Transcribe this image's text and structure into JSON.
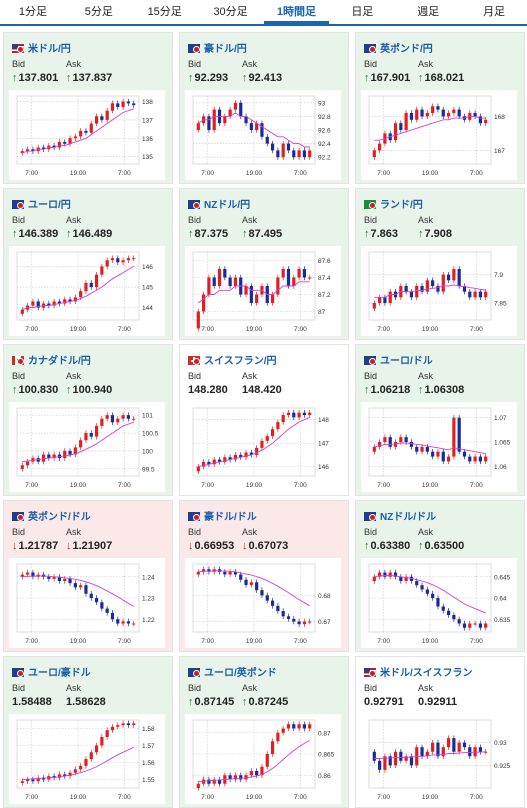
{
  "tabs": [
    {
      "label": "1分足",
      "active": false
    },
    {
      "label": "5分足",
      "active": false
    },
    {
      "label": "15分足",
      "active": false
    },
    {
      "label": "30分足",
      "active": false
    },
    {
      "label": "1時間足",
      "active": true
    },
    {
      "label": "日足",
      "active": false
    },
    {
      "label": "週足",
      "active": false
    },
    {
      "label": "月足",
      "active": false
    }
  ],
  "labels": {
    "bid": "Bid",
    "ask": "Ask"
  },
  "colors": {
    "up_bg": "#e8f4ea",
    "down_bg": "#fbe9ea",
    "up_arrow": "#1e8c3a",
    "down_arrow": "#d0202a",
    "title": "#1a5ca8",
    "ma": "#d23fd2",
    "candle_up": "#e02020",
    "candle_down": "#1a2a9a"
  },
  "pairs": [
    {
      "name": "米ドル/円",
      "flag": "us-jp",
      "trend": "up",
      "bid": "137.801",
      "ask": "137.837",
      "bid_dir": "up",
      "ask_dir": "up",
      "chart_data": {
        "type": "candlestick",
        "x_ticks": [
          "7:00",
          "19:00",
          "7:00"
        ],
        "y_ticks": [
          "138",
          "137",
          "136",
          "135"
        ],
        "ylim": [
          134.6,
          138.3
        ],
        "close": [
          135.3,
          135.4,
          135.3,
          135.5,
          135.4,
          135.6,
          135.5,
          135.8,
          135.7,
          136.0,
          136.1,
          136.4,
          136.3,
          136.8,
          137.2,
          137.0,
          137.5,
          137.9,
          137.7,
          138.0,
          137.9,
          137.8
        ],
        "ma": [
          135.2,
          135.3,
          135.3,
          135.4,
          135.4,
          135.5,
          135.5,
          135.6,
          135.6,
          135.7,
          135.8,
          135.9,
          136.0,
          136.2,
          136.4,
          136.6,
          136.8,
          137.0,
          137.2,
          137.4,
          137.5,
          137.6
        ]
      }
    },
    {
      "name": "豪ドル/円",
      "flag": "au-jp",
      "trend": "up",
      "bid": "92.293",
      "ask": "92.413",
      "bid_dir": "up",
      "ask_dir": "up",
      "chart_data": {
        "type": "candlestick",
        "x_ticks": [
          "7:00",
          "19:00",
          "7:00"
        ],
        "y_ticks": [
          "93",
          "92.8",
          "92.6",
          "92.4",
          "92.2"
        ],
        "ylim": [
          92.1,
          93.1
        ],
        "close": [
          92.7,
          92.8,
          92.6,
          92.9,
          92.7,
          92.8,
          92.9,
          93.0,
          92.8,
          92.7,
          92.6,
          92.7,
          92.5,
          92.4,
          92.3,
          92.2,
          92.4,
          92.3,
          92.2,
          92.3,
          92.2,
          92.3
        ],
        "ma": [
          92.7,
          92.75,
          92.75,
          92.8,
          92.8,
          92.8,
          92.8,
          92.85,
          92.8,
          92.8,
          92.75,
          92.7,
          92.65,
          92.6,
          92.55,
          92.5,
          92.5,
          92.45,
          92.4,
          92.4,
          92.35,
          92.35
        ]
      }
    },
    {
      "name": "英ポンド/円",
      "flag": "gb-jp",
      "trend": "up",
      "bid": "167.901",
      "ask": "168.021",
      "bid_dir": "up",
      "ask_dir": "up",
      "chart_data": {
        "type": "candlestick",
        "x_ticks": [
          "7:00",
          "19:00",
          "7:00"
        ],
        "y_ticks": [
          "168",
          "167"
        ],
        "ylim": [
          166.6,
          168.6
        ],
        "close": [
          167.0,
          167.2,
          167.5,
          167.3,
          167.8,
          167.6,
          168.1,
          167.9,
          168.2,
          168.0,
          168.1,
          168.3,
          168.2,
          168.0,
          168.1,
          168.2,
          168.0,
          167.9,
          168.1,
          168.0,
          167.8,
          167.9
        ],
        "ma": [
          167.3,
          167.3,
          167.35,
          167.4,
          167.45,
          167.5,
          167.55,
          167.6,
          167.65,
          167.7,
          167.75,
          167.8,
          167.85,
          167.9,
          167.9,
          167.95,
          167.95,
          167.95,
          168.0,
          168.0,
          167.95,
          167.95
        ]
      }
    },
    {
      "name": "ユーロ/円",
      "flag": "eu-jp",
      "trend": "up",
      "bid": "146.389",
      "ask": "146.489",
      "bid_dir": "up",
      "ask_dir": "up",
      "chart_data": {
        "type": "candlestick",
        "x_ticks": [
          "7:00",
          "19:00",
          "7:00"
        ],
        "y_ticks": [
          "146",
          "145",
          "144"
        ],
        "ylim": [
          143.4,
          146.7
        ],
        "close": [
          143.9,
          144.1,
          144.3,
          144.0,
          144.2,
          144.1,
          144.3,
          144.2,
          144.4,
          144.3,
          144.5,
          144.8,
          145.2,
          145.0,
          145.6,
          146.0,
          146.3,
          146.4,
          146.2,
          146.3,
          146.4,
          146.4
        ],
        "ma": [
          143.9,
          144.0,
          144.0,
          144.05,
          144.1,
          144.1,
          144.15,
          144.2,
          144.25,
          144.3,
          144.35,
          144.45,
          144.55,
          144.7,
          144.85,
          145.0,
          145.2,
          145.4,
          145.55,
          145.7,
          145.85,
          146.0
        ]
      }
    },
    {
      "name": "NZドル/円",
      "flag": "nz-jp",
      "trend": "up",
      "bid": "87.375",
      "ask": "87.495",
      "bid_dir": "up",
      "ask_dir": "up",
      "chart_data": {
        "type": "candlestick",
        "x_ticks": [
          "7:00",
          "19:00",
          "7:00"
        ],
        "y_ticks": [
          "87.6",
          "87.4",
          "87.2",
          "87"
        ],
        "ylim": [
          86.9,
          87.7
        ],
        "close": [
          87.0,
          87.2,
          87.4,
          87.3,
          87.5,
          87.4,
          87.3,
          87.4,
          87.2,
          87.3,
          87.1,
          87.2,
          87.3,
          87.1,
          87.2,
          87.4,
          87.5,
          87.3,
          87.4,
          87.5,
          87.4,
          87.4
        ],
        "ma": [
          87.1,
          87.15,
          87.2,
          87.2,
          87.25,
          87.25,
          87.25,
          87.3,
          87.3,
          87.3,
          87.25,
          87.25,
          87.25,
          87.2,
          87.2,
          87.25,
          87.3,
          87.3,
          87.3,
          87.35,
          87.35,
          87.35
        ]
      }
    },
    {
      "name": "ランド/円",
      "flag": "za-jp",
      "trend": "up",
      "bid": "7.863",
      "ask": "7.908",
      "bid_dir": "up",
      "ask_dir": "up",
      "chart_data": {
        "type": "candlestick",
        "x_ticks": [
          "7:00",
          "19:00",
          "7:00"
        ],
        "y_ticks": [
          "7.9",
          "7.85"
        ],
        "ylim": [
          7.82,
          7.94
        ],
        "close": [
          7.85,
          7.86,
          7.85,
          7.87,
          7.86,
          7.88,
          7.87,
          7.86,
          7.88,
          7.87,
          7.89,
          7.88,
          7.87,
          7.9,
          7.89,
          7.91,
          7.88,
          7.87,
          7.86,
          7.87,
          7.86,
          7.87
        ],
        "ma": [
          7.86,
          7.86,
          7.86,
          7.865,
          7.865,
          7.87,
          7.87,
          7.87,
          7.872,
          7.872,
          7.875,
          7.876,
          7.877,
          7.88,
          7.88,
          7.882,
          7.88,
          7.879,
          7.877,
          7.876,
          7.874,
          7.873
        ]
      }
    },
    {
      "name": "カナダドル/円",
      "flag": "ca-jp",
      "trend": "up",
      "bid": "100.830",
      "ask": "100.940",
      "bid_dir": "up",
      "ask_dir": "up",
      "chart_data": {
        "type": "candlestick",
        "x_ticks": [
          "7:00",
          "19:00",
          "7:00"
        ],
        "y_ticks": [
          "101",
          "100.5",
          "100",
          "99.5"
        ],
        "ylim": [
          99.3,
          101.2
        ],
        "close": [
          99.6,
          99.7,
          99.8,
          99.7,
          99.9,
          99.8,
          99.9,
          99.8,
          100.0,
          99.9,
          100.1,
          100.3,
          100.5,
          100.4,
          100.7,
          100.9,
          101.0,
          100.8,
          100.9,
          101.0,
          100.9,
          100.9
        ],
        "ma": [
          99.7,
          99.72,
          99.74,
          99.76,
          99.78,
          99.8,
          99.82,
          99.84,
          99.86,
          99.88,
          99.92,
          99.98,
          100.05,
          100.12,
          100.2,
          100.3,
          100.4,
          100.5,
          100.6,
          100.7,
          100.75,
          100.8
        ]
      }
    },
    {
      "name": "スイスフラン/円",
      "flag": "ch-jp",
      "trend": "flat",
      "bid": "148.280",
      "ask": "148.420",
      "bid_dir": "none",
      "ask_dir": "none",
      "chart_data": {
        "type": "candlestick",
        "x_ticks": [
          "7:00",
          "19:00",
          "7:00"
        ],
        "y_ticks": [
          "148",
          "147",
          "146"
        ],
        "ylim": [
          145.6,
          148.5
        ],
        "close": [
          146.0,
          146.2,
          146.1,
          146.3,
          146.2,
          146.4,
          146.3,
          146.5,
          146.4,
          146.6,
          146.5,
          146.8,
          147.1,
          147.3,
          147.6,
          147.9,
          148.2,
          148.3,
          148.1,
          148.3,
          148.2,
          148.3
        ],
        "ma": [
          146.0,
          146.05,
          146.1,
          146.15,
          146.2,
          146.25,
          146.3,
          146.35,
          146.4,
          146.45,
          146.5,
          146.6,
          146.7,
          146.85,
          147.0,
          147.2,
          147.4,
          147.6,
          147.75,
          147.9,
          148.0,
          148.1
        ]
      }
    },
    {
      "name": "ユーロ/ドル",
      "flag": "eu-us",
      "trend": "up",
      "bid": "1.06218",
      "ask": "1.06308",
      "bid_dir": "up",
      "ask_dir": "up",
      "chart_data": {
        "type": "candlestick",
        "x_ticks": [
          "7:00",
          "19:00",
          "7:00"
        ],
        "y_ticks": [
          "1.07",
          "1.065",
          "1.06"
        ],
        "ylim": [
          1.058,
          1.072
        ],
        "close": [
          1.064,
          1.065,
          1.066,
          1.064,
          1.065,
          1.066,
          1.065,
          1.064,
          1.063,
          1.064,
          1.063,
          1.062,
          1.063,
          1.061,
          1.062,
          1.07,
          1.063,
          1.062,
          1.061,
          1.062,
          1.061,
          1.062
        ],
        "ma": [
          1.064,
          1.0642,
          1.0645,
          1.0645,
          1.0646,
          1.0648,
          1.0648,
          1.0647,
          1.0645,
          1.0644,
          1.0642,
          1.064,
          1.0638,
          1.0636,
          1.0634,
          1.0638,
          1.0636,
          1.0634,
          1.0632,
          1.063,
          1.0628,
          1.0626
        ]
      }
    },
    {
      "name": "英ポンド/ドル",
      "flag": "gb-us",
      "trend": "down",
      "bid": "1.21787",
      "ask": "1.21907",
      "bid_dir": "down",
      "ask_dir": "down",
      "chart_data": {
        "type": "candlestick",
        "x_ticks": [
          "7:00",
          "19:00",
          "7:00"
        ],
        "y_ticks": [
          "1.24",
          "1.23",
          "1.22"
        ],
        "ylim": [
          1.214,
          1.246
        ],
        "close": [
          1.241,
          1.242,
          1.24,
          1.241,
          1.24,
          1.239,
          1.24,
          1.238,
          1.239,
          1.237,
          1.235,
          1.236,
          1.232,
          1.23,
          1.228,
          1.225,
          1.223,
          1.22,
          1.218,
          1.219,
          1.218,
          1.218
        ],
        "ma": [
          1.24,
          1.2402,
          1.2403,
          1.2404,
          1.2404,
          1.2402,
          1.24,
          1.2398,
          1.2395,
          1.2392,
          1.2388,
          1.2383,
          1.2376,
          1.2368,
          1.2358,
          1.2346,
          1.2333,
          1.232,
          1.2305,
          1.229,
          1.2275,
          1.226
        ]
      }
    },
    {
      "name": "豪ドル/ドル",
      "flag": "au-us",
      "trend": "down",
      "bid": "0.66953",
      "ask": "0.67073",
      "bid_dir": "down",
      "ask_dir": "down",
      "chart_data": {
        "type": "candlestick",
        "x_ticks": [
          "7:00",
          "19:00",
          "7:00"
        ],
        "y_ticks": [
          "0.68",
          "0.67"
        ],
        "ylim": [
          0.666,
          0.692
        ],
        "close": [
          0.689,
          0.69,
          0.689,
          0.69,
          0.689,
          0.688,
          0.689,
          0.688,
          0.686,
          0.684,
          0.685,
          0.682,
          0.68,
          0.678,
          0.676,
          0.674,
          0.672,
          0.671,
          0.67,
          0.669,
          0.67,
          0.67
        ],
        "ma": [
          0.689,
          0.6892,
          0.6893,
          0.6894,
          0.6894,
          0.6893,
          0.6892,
          0.689,
          0.6886,
          0.6882,
          0.6878,
          0.6872,
          0.6865,
          0.6856,
          0.6846,
          0.6835,
          0.6823,
          0.681,
          0.6797,
          0.6784,
          0.6772,
          0.676
        ]
      }
    },
    {
      "name": "NZドル/ドル",
      "flag": "nz-us",
      "trend": "up",
      "bid": "0.63380",
      "ask": "0.63500",
      "bid_dir": "up",
      "ask_dir": "up",
      "chart_data": {
        "type": "candlestick",
        "x_ticks": [
          "7:00",
          "19:00",
          "7:00"
        ],
        "y_ticks": [
          "0.645",
          "0.64",
          "0.635"
        ],
        "ylim": [
          0.632,
          0.648
        ],
        "close": [
          0.645,
          0.646,
          0.645,
          0.646,
          0.645,
          0.644,
          0.645,
          0.644,
          0.643,
          0.642,
          0.641,
          0.64,
          0.638,
          0.637,
          0.636,
          0.635,
          0.634,
          0.633,
          0.634,
          0.634,
          0.633,
          0.634
        ],
        "ma": [
          0.645,
          0.6452,
          0.6453,
          0.6453,
          0.6452,
          0.645,
          0.6448,
          0.6446,
          0.6443,
          0.644,
          0.6436,
          0.6431,
          0.6425,
          0.6418,
          0.641,
          0.6402,
          0.6394,
          0.6386,
          0.638,
          0.6375,
          0.637,
          0.6365
        ]
      }
    },
    {
      "name": "ユーロ/豪ドル",
      "flag": "eu-au",
      "trend": "up",
      "bid": "1.58488",
      "ask": "1.58628",
      "bid_dir": "none",
      "ask_dir": "none",
      "chart_data": {
        "type": "candlestick",
        "x_ticks": [
          "7:00",
          "19:00",
          "7:00"
        ],
        "y_ticks": [
          "1.58",
          "1.57",
          "1.56",
          "1.55"
        ],
        "ylim": [
          1.545,
          1.585
        ],
        "close": [
          1.549,
          1.55,
          1.549,
          1.551,
          1.55,
          1.552,
          1.551,
          1.553,
          1.552,
          1.554,
          1.556,
          1.558,
          1.562,
          1.566,
          1.57,
          1.575,
          1.579,
          1.581,
          1.582,
          1.583,
          1.582,
          1.583
        ],
        "ma": [
          1.55,
          1.5502,
          1.5504,
          1.5506,
          1.5508,
          1.551,
          1.5513,
          1.5516,
          1.552,
          1.5525,
          1.5532,
          1.554,
          1.555,
          1.5562,
          1.5576,
          1.5592,
          1.561,
          1.5628,
          1.5645,
          1.566,
          1.5675,
          1.569
        ]
      }
    },
    {
      "name": "ユーロ/英ポンド",
      "flag": "eu-gb",
      "trend": "up",
      "bid": "0.87145",
      "ask": "0.87245",
      "bid_dir": "up",
      "ask_dir": "up",
      "chart_data": {
        "type": "candlestick",
        "x_ticks": [
          "7:00",
          "19:00",
          "7:00"
        ],
        "y_ticks": [
          "0.87",
          "0.865",
          "0.86"
        ],
        "ylim": [
          0.857,
          0.873
        ],
        "close": [
          0.858,
          0.859,
          0.858,
          0.859,
          0.858,
          0.86,
          0.859,
          0.86,
          0.859,
          0.86,
          0.861,
          0.86,
          0.862,
          0.865,
          0.868,
          0.87,
          0.871,
          0.872,
          0.871,
          0.872,
          0.871,
          0.872
        ],
        "ma": [
          0.8585,
          0.8586,
          0.8587,
          0.8588,
          0.8589,
          0.859,
          0.8591,
          0.8592,
          0.8593,
          0.8594,
          0.8596,
          0.8598,
          0.8602,
          0.8608,
          0.8616,
          0.8626,
          0.8637,
          0.8648,
          0.8658,
          0.8667,
          0.8675,
          0.8682
        ]
      }
    },
    {
      "name": "米ドル/スイスフラン",
      "flag": "us-ch",
      "trend": "flat",
      "bid": "0.92791",
      "ask": "0.92911",
      "bid_dir": "none",
      "ask_dir": "none",
      "chart_data": {
        "type": "candlestick",
        "x_ticks": [
          "7:00",
          "19:00",
          "7:00"
        ],
        "y_ticks": [
          "0.93",
          "0.925"
        ],
        "ylim": [
          0.92,
          0.935
        ],
        "close": [
          0.926,
          0.924,
          0.927,
          0.925,
          0.928,
          0.926,
          0.927,
          0.925,
          0.929,
          0.927,
          0.928,
          0.93,
          0.927,
          0.929,
          0.931,
          0.928,
          0.93,
          0.929,
          0.927,
          0.929,
          0.928,
          0.928
        ],
        "ma": [
          0.9265,
          0.9265,
          0.9266,
          0.9266,
          0.9267,
          0.9267,
          0.9268,
          0.9268,
          0.927,
          0.927,
          0.9271,
          0.9273,
          0.9273,
          0.9274,
          0.9276,
          0.9276,
          0.9277,
          0.9278,
          0.9278,
          0.9279,
          0.9279,
          0.928
        ]
      }
    }
  ]
}
